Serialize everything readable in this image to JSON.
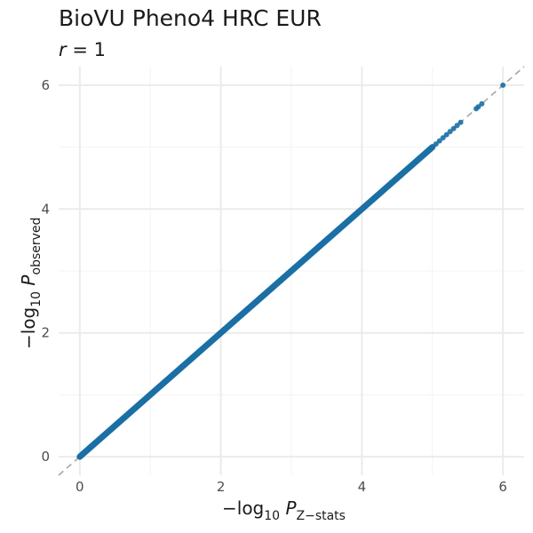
{
  "title": "BioVU Pheno4 HRC EUR",
  "subtitle": {
    "var": "r",
    "rest": " = 1"
  },
  "xlabel": {
    "prefix": "−log",
    "base": "10",
    "var": "P",
    "sub": "Z−stats"
  },
  "ylabel": {
    "prefix": "−log",
    "base": "10",
    "var": "P",
    "sub": "observed"
  },
  "colors": {
    "points": "#1a6fa5",
    "diagonal": "#a6a6a6",
    "grid_major": "#ebebeb",
    "grid_minor": "#f3f3f3"
  },
  "chart_data": {
    "type": "scatter",
    "title": "BioVU Pheno4 HRC EUR",
    "subtitle": "r = 1",
    "xlabel": "−log10 P Z−stats",
    "ylabel": "−log10 P observed",
    "xlim": [
      -0.3,
      6.3
    ],
    "ylim": [
      -0.3,
      6.3
    ],
    "xticks": [
      0,
      2,
      4,
      6
    ],
    "yticks": [
      0,
      2,
      4,
      6
    ],
    "grid": true,
    "reference_line": "y = x (dashed)",
    "points_dense_range": [
      0,
      5.0
    ],
    "x": [
      5.05,
      5.1,
      5.15,
      5.2,
      5.25,
      5.3,
      5.35,
      5.4,
      5.62,
      5.65,
      5.7,
      6.0
    ],
    "y": [
      5.05,
      5.1,
      5.15,
      5.2,
      5.25,
      5.3,
      5.35,
      5.4,
      5.62,
      5.65,
      5.7,
      6.0
    ]
  }
}
